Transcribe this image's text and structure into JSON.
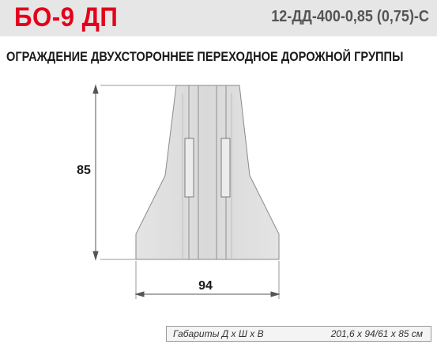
{
  "header": {
    "model_code": "БО-9 ДП",
    "spec_code": "12-ДД-400-0,85 (0,75)-С"
  },
  "title": "ОГРАЖДЕНИЕ ДВУХСТОРОННЕЕ ПЕРЕХОДНОЕ ДОРОЖНОЙ ГРУППЫ",
  "drawing": {
    "height_label": "85",
    "width_label": "94"
  },
  "footer": {
    "label": "Габариты Д х Ш х В",
    "value": "201,6 х 94/61 х 85 см"
  },
  "colors": {
    "accent": "#e3001b",
    "header_bg": "#e6e6e6",
    "barrier_fill": "#dedede"
  }
}
